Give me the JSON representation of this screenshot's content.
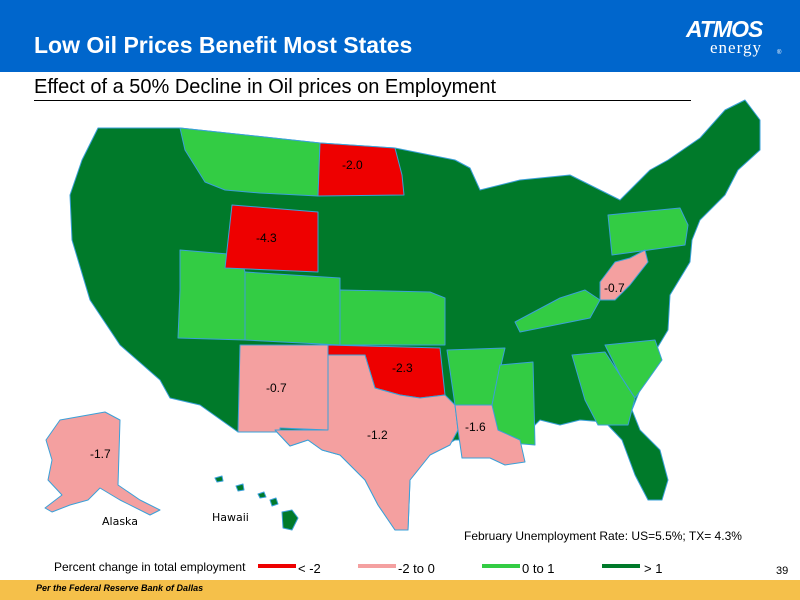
{
  "header": {
    "title": "Low Oil Prices Benefit Most States",
    "logo_main": "ATMOS",
    "logo_sub": "energy",
    "logo_reg": "®"
  },
  "subtitle": "Effect of a 50% Decline in Oil prices on Employment",
  "colors": {
    "header_bg": "#0066cc",
    "dark_green": "#007a2a",
    "light_green": "#33cc44",
    "pink": "#f4a0a0",
    "red": "#ee0000",
    "footer_bg": "#f5c04a"
  },
  "map": {
    "state_labels": [
      {
        "state": "North Dakota",
        "value": "-2.0"
      },
      {
        "state": "Wyoming",
        "value": "-4.3"
      },
      {
        "state": "West Virginia",
        "value": "-0.7"
      },
      {
        "state": "Oklahoma",
        "value": "-2.3"
      },
      {
        "state": "New Mexico",
        "value": "-0.7"
      },
      {
        "state": "Texas",
        "value": "-1.2"
      },
      {
        "state": "Louisiana",
        "value": "-1.6"
      },
      {
        "state": "Alaska",
        "value": "-1.7"
      }
    ],
    "alaska_label": "Alaska",
    "hawaii_label": "Hawaii"
  },
  "unemployment_note": "February Unemployment Rate:  US=5.5%; TX= 4.3%",
  "legend": {
    "title": "Percent change in total employment",
    "items": [
      {
        "label": "< -2",
        "color": "#ee0000"
      },
      {
        "label": "-2 to 0",
        "color": "#f4a0a0"
      },
      {
        "label": "0 to 1",
        "color": "#33cc44"
      },
      {
        "label": "> 1",
        "color": "#007a2a"
      }
    ]
  },
  "page_number": "39",
  "footer_text": "Per the Federal Reserve Bank of Dallas"
}
